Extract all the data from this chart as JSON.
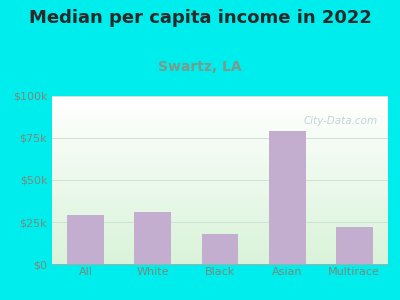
{
  "title": "Median per capita income in 2022",
  "subtitle": "Swartz, LA",
  "categories": [
    "All",
    "White",
    "Black",
    "Asian",
    "Multirace"
  ],
  "values": [
    29000,
    31000,
    18000,
    79000,
    22000
  ],
  "bar_color": "#c4aed0",
  "title_color": "#2a2a2a",
  "subtitle_color": "#7a9a8a",
  "tick_label_color": "#7a8a7a",
  "background_outer": "#00eded",
  "ylim": [
    0,
    100000
  ],
  "yticks": [
    0,
    25000,
    50000,
    75000,
    100000
  ],
  "ytick_labels": [
    "$0",
    "$25k",
    "$50k",
    "$75k",
    "$100k"
  ],
  "watermark": "City-Data.com",
  "title_fontsize": 13,
  "subtitle_fontsize": 10,
  "tick_fontsize": 8
}
